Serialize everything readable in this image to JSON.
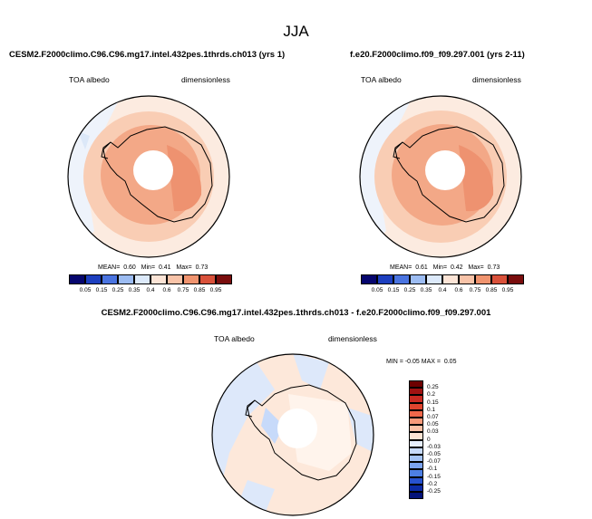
{
  "figure": {
    "title": "JJA"
  },
  "panels": [
    {
      "case_name": "CESM2.F2000climo.C96.C96.mg17.intel.432pes.1thrds.ch013 (yrs 1)",
      "variable": "TOA albedo",
      "units": "dimensionless",
      "stats": {
        "mean_label": "MEAN=",
        "mean": "0.60",
        "min_label": "Min=",
        "min": "0.41",
        "max_label": "Max=",
        "max": "0.73"
      }
    },
    {
      "case_name": "f.e20.F2000climo.f09_f09.297.001 (yrs 2-11)",
      "variable": "TOA albedo",
      "units": "dimensionless",
      "stats": {
        "mean_label": "MEAN=",
        "mean": "0.61",
        "min_label": "Min=",
        "min": "0.42",
        "max_label": "Max=",
        "max": "0.73"
      }
    }
  ],
  "diff_panel": {
    "title": "CESM2.F2000climo.C96.C96.mg17.intel.432pes.1thrds.ch013 - f.e20.F2000climo.f09_f09.297.001",
    "variable": "TOA albedo",
    "units": "dimensionless",
    "minmax": {
      "min_label": "MIN =",
      "min": "-0.05",
      "max_label": "MAX =",
      "max": "0.05"
    }
  },
  "chart_data": [
    {
      "type": "heatmap",
      "projection": "south-polar-stereographic",
      "title": "CESM2.F2000climo.C96.C96.mg17.intel.432pes.1thrds.ch013 (yrs 1)",
      "variable": "TOA albedo",
      "units": "dimensionless",
      "mean": 0.6,
      "min": 0.41,
      "max": 0.73,
      "colorbar_levels": [
        0.05,
        0.15,
        0.25,
        0.35,
        0.4,
        0.6,
        0.75,
        0.85,
        0.95
      ],
      "colorbar_colors": [
        "#06066e",
        "#1d3fbf",
        "#4a74e0",
        "#9cbcf2",
        "#dce9fa",
        "#fce4d6",
        "#f8c3a8",
        "#f0946f",
        "#d9513a",
        "#7a0d0d"
      ]
    },
    {
      "type": "heatmap",
      "projection": "south-polar-stereographic",
      "title": "f.e20.F2000climo.f09_f09.297.001 (yrs 2-11)",
      "variable": "TOA albedo",
      "units": "dimensionless",
      "mean": 0.61,
      "min": 0.42,
      "max": 0.73,
      "colorbar_levels": [
        0.05,
        0.15,
        0.25,
        0.35,
        0.4,
        0.6,
        0.75,
        0.85,
        0.95
      ],
      "colorbar_colors": [
        "#06066e",
        "#1d3fbf",
        "#4a74e0",
        "#9cbcf2",
        "#dce9fa",
        "#fce4d6",
        "#f8c3a8",
        "#f0946f",
        "#d9513a",
        "#7a0d0d"
      ]
    },
    {
      "type": "heatmap",
      "projection": "south-polar-stereographic",
      "title": "CESM2.F2000climo.C96.C96.mg17.intel.432pes.1thrds.ch013 - f.e20.F2000climo.f09_f09.297.001",
      "variable": "TOA albedo",
      "units": "dimensionless",
      "min": -0.05,
      "max": 0.05,
      "colorbar_levels": [
        "0.25",
        "0.2",
        "0.15",
        "0.1",
        "0.07",
        "0.05",
        "0.03",
        "0",
        "-0.03",
        "-0.05",
        "-0.07",
        "-0.1",
        "-0.15",
        "-0.2",
        "-0.25"
      ],
      "colorbar_colors": [
        "#6e0000",
        "#a01212",
        "#c92a22",
        "#e0442e",
        "#f0684a",
        "#f79a7a",
        "#fbc1a6",
        "#fde4d4",
        "#e6eefc",
        "#c7dafa",
        "#a4c3f6",
        "#7ca4ef",
        "#4d7fe4",
        "#2752cf",
        "#0c2ba6",
        "#04137a"
      ]
    }
  ]
}
